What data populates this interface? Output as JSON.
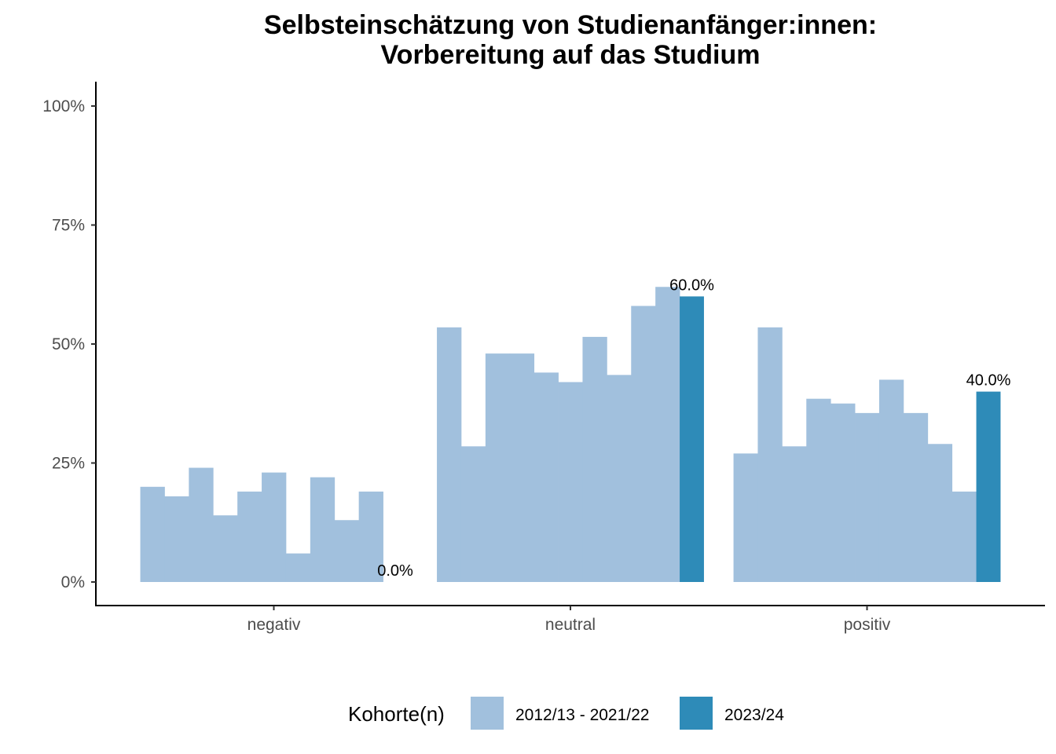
{
  "chart_data": {
    "type": "bar",
    "title_lines": [
      "Selbsteinschätzung von Studienanfänger:innen:",
      "Vorbereitung auf das Studium"
    ],
    "xlabel": "",
    "ylabel": "",
    "ylim": [
      -0.05,
      1.05
    ],
    "y_ticks": [
      0,
      0.25,
      0.5,
      0.75,
      1.0
    ],
    "y_tick_labels": [
      "0%",
      "25%",
      "50%",
      "75%",
      "100%"
    ],
    "categories": [
      "negativ",
      "neutral",
      "positiv"
    ],
    "historic_bars_per_category": 10,
    "series": [
      {
        "name": "2012/13 - 2021/22",
        "color": "#a1c0dd",
        "values": [
          [
            0.2,
            0.18,
            0.24,
            0.14,
            0.19,
            0.23,
            0.06,
            0.22,
            0.13,
            0.19
          ],
          [
            0.535,
            0.285,
            0.48,
            0.48,
            0.44,
            0.42,
            0.515,
            0.435,
            0.58,
            0.62
          ],
          [
            0.27,
            0.535,
            0.285,
            0.385,
            0.375,
            0.355,
            0.425,
            0.355,
            0.29,
            0.19
          ]
        ]
      },
      {
        "name": "2023/24",
        "color": "#2e8bb8",
        "values": [
          0.0,
          0.6,
          0.4
        ],
        "labels": [
          "0.0%",
          "60.0%",
          "40.0%"
        ]
      }
    ],
    "grid": false,
    "legend": {
      "title": "Kohorte(n)",
      "position": "bottom",
      "entries": [
        "2012/13 - 2021/22",
        "2023/24"
      ]
    }
  }
}
